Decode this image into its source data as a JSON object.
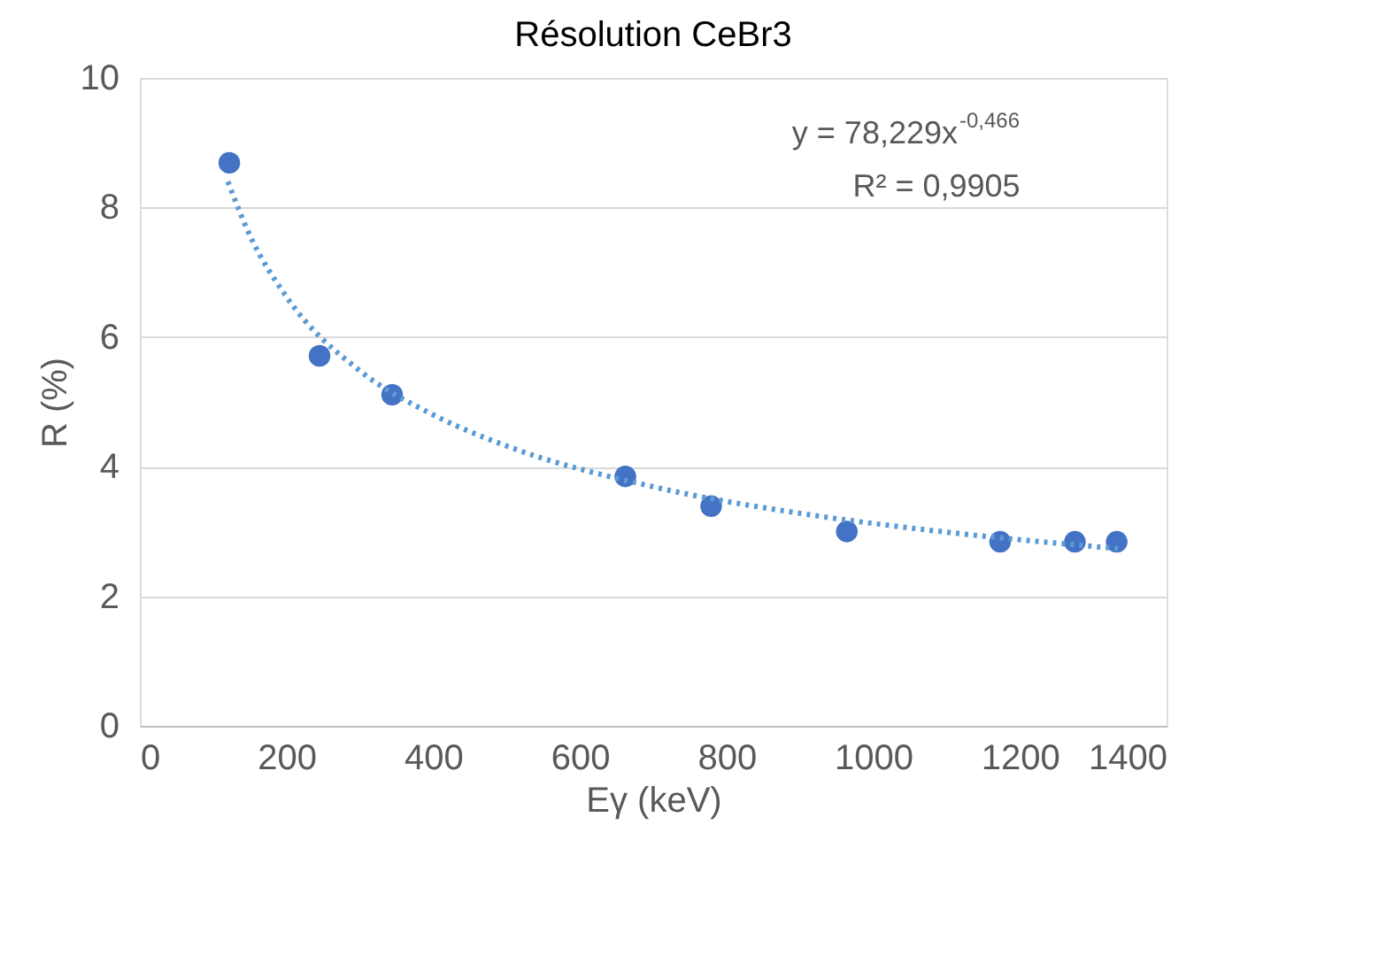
{
  "chart_data": {
    "type": "scatter",
    "title": "Résolution CeBr3",
    "xlabel": "Eγ (keV)",
    "ylabel": "R (%)",
    "xlim": [
      0,
      1400
    ],
    "xticks": [
      0,
      200,
      400,
      600,
      800,
      1000,
      1200,
      1400
    ],
    "ylim": [
      0,
      10
    ],
    "yticks": [
      0,
      2,
      4,
      6,
      8,
      10
    ],
    "grid": "y",
    "annotations": [
      "y = 78,229x$^{-0,466}$",
      "R² = 0,9905"
    ],
    "series": [
      {
        "color": "#4472c4",
        "marker": "circle",
        "x": [
          122,
          245,
          344,
          662,
          779,
          964,
          1173,
          1275,
          1332
        ],
        "values": [
          8.69,
          5.71,
          5.11,
          3.85,
          3.39,
          3.0,
          2.84,
          2.84,
          2.84
        ]
      },
      {
        "type": "line",
        "color": "#5b9bd5",
        "line_style": "dotted",
        "x": [
          120,
          150,
          200,
          300,
          400,
          500,
          700,
          900,
          1100,
          1340
        ],
        "values": [
          8.4,
          7.57,
          6.62,
          5.48,
          4.8,
          4.32,
          3.69,
          3.28,
          2.99,
          2.73
        ]
      }
    ]
  }
}
